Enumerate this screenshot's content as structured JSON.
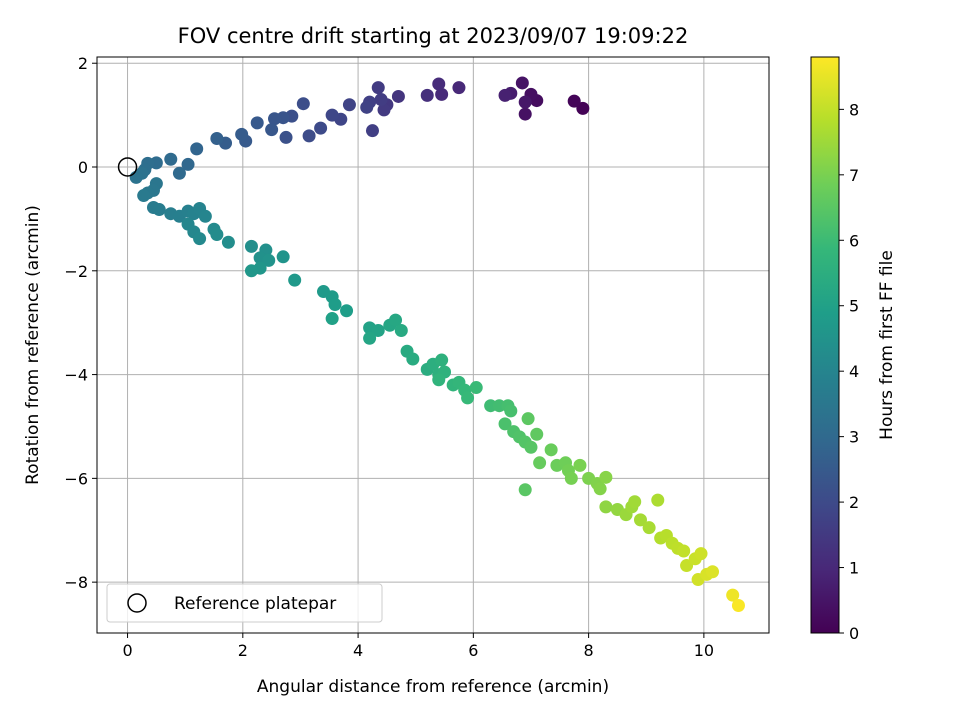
{
  "chart_data": {
    "type": "scatter",
    "title": "FOV centre drift starting at 2023/09/07 19:09:22",
    "xlabel": "Angular distance from reference (arcmin)",
    "ylabel": "Rotation from reference (arcmin)",
    "xlim": [
      -0.53,
      11.13
    ],
    "ylim": [
      -8.98,
      2.12
    ],
    "x_ticks": [
      "0",
      "2",
      "4",
      "6",
      "8",
      "10"
    ],
    "y_ticks": [
      "2",
      "0",
      "−2",
      "−4",
      "−6",
      "−8"
    ],
    "grid": true,
    "legend": {
      "placement": "lower-left",
      "entries": [
        "Reference platepar"
      ]
    },
    "reference_point": {
      "x": 0,
      "y": 0,
      "label": "Reference platepar"
    },
    "colorbar": {
      "label": "Hours from first FF file",
      "colormap": "viridis",
      "range": [
        0,
        8.8
      ],
      "ticks": [
        "0",
        "1",
        "2",
        "3",
        "4",
        "5",
        "6",
        "7",
        "8"
      ]
    },
    "colormap_stops": [
      "#440154",
      "#482878",
      "#3e4989",
      "#31688e",
      "#26828e",
      "#1f9e89",
      "#35b779",
      "#6ece58",
      "#b5de2b",
      "#fde725"
    ],
    "points": [
      [
        7.9,
        1.13,
        0.05
      ],
      [
        7.75,
        1.27,
        0.1
      ],
      [
        7.1,
        1.28,
        0.3
      ],
      [
        7.0,
        1.4,
        0.35
      ],
      [
        6.9,
        1.02,
        0.4
      ],
      [
        6.85,
        1.62,
        0.45
      ],
      [
        6.9,
        1.25,
        0.55
      ],
      [
        6.65,
        1.42,
        0.7
      ],
      [
        6.55,
        1.38,
        0.8
      ],
      [
        5.75,
        1.53,
        1.0
      ],
      [
        5.45,
        1.4,
        1.05
      ],
      [
        5.4,
        1.6,
        1.1
      ],
      [
        5.2,
        1.38,
        1.2
      ],
      [
        4.7,
        1.36,
        1.35
      ],
      [
        4.5,
        1.2,
        1.45
      ],
      [
        4.45,
        1.1,
        1.5
      ],
      [
        4.35,
        1.53,
        1.55
      ],
      [
        4.4,
        1.3,
        1.6
      ],
      [
        4.25,
        0.7,
        1.65
      ],
      [
        4.2,
        1.25,
        1.7
      ],
      [
        4.15,
        1.15,
        1.75
      ],
      [
        3.85,
        1.2,
        1.8
      ],
      [
        3.7,
        0.92,
        1.85
      ],
      [
        3.55,
        1.0,
        1.9
      ],
      [
        3.35,
        0.75,
        2.0
      ],
      [
        3.15,
        0.6,
        2.05
      ],
      [
        3.05,
        1.22,
        2.1
      ],
      [
        2.85,
        0.98,
        2.15
      ],
      [
        2.75,
        0.57,
        2.2
      ],
      [
        2.7,
        0.95,
        2.3
      ],
      [
        2.55,
        0.93,
        2.35
      ],
      [
        2.5,
        0.72,
        2.4
      ],
      [
        2.25,
        0.85,
        2.45
      ],
      [
        2.05,
        0.5,
        2.5
      ],
      [
        1.98,
        0.63,
        2.55
      ],
      [
        1.7,
        0.46,
        2.6
      ],
      [
        1.55,
        0.55,
        2.7
      ],
      [
        1.2,
        0.35,
        2.85
      ],
      [
        1.05,
        0.05,
        2.95
      ],
      [
        0.9,
        -0.12,
        3.0
      ],
      [
        0.75,
        0.15,
        3.05
      ],
      [
        0.5,
        0.08,
        3.1
      ],
      [
        0.35,
        0.07,
        3.15
      ],
      [
        0.3,
        -0.05,
        3.2
      ],
      [
        0.25,
        -0.12,
        3.3
      ],
      [
        0.15,
        -0.2,
        3.35
      ],
      [
        0.5,
        -0.32,
        3.45
      ],
      [
        0.45,
        -0.45,
        3.5
      ],
      [
        0.35,
        -0.5,
        3.55
      ],
      [
        0.28,
        -0.55,
        3.6
      ],
      [
        0.45,
        -0.78,
        3.65
      ],
      [
        0.55,
        -0.82,
        3.7
      ],
      [
        0.75,
        -0.9,
        3.75
      ],
      [
        0.9,
        -0.95,
        3.8
      ],
      [
        1.05,
        -0.85,
        3.85
      ],
      [
        1.15,
        -0.9,
        3.9
      ],
      [
        1.25,
        -0.8,
        3.95
      ],
      [
        1.35,
        -0.95,
        4.0
      ],
      [
        1.05,
        -1.1,
        4.05
      ],
      [
        1.15,
        -1.25,
        4.1
      ],
      [
        1.25,
        -1.38,
        4.15
      ],
      [
        1.5,
        -1.2,
        4.2
      ],
      [
        1.55,
        -1.3,
        4.25
      ],
      [
        1.75,
        -1.45,
        4.3
      ],
      [
        2.15,
        -1.53,
        4.35
      ],
      [
        2.4,
        -1.6,
        4.4
      ],
      [
        2.3,
        -1.75,
        4.45
      ],
      [
        2.45,
        -1.8,
        4.5
      ],
      [
        2.7,
        -1.73,
        4.55
      ],
      [
        2.3,
        -1.95,
        4.6
      ],
      [
        2.15,
        -2.0,
        4.65
      ],
      [
        2.9,
        -2.18,
        4.7
      ],
      [
        3.4,
        -2.4,
        4.75
      ],
      [
        3.55,
        -2.5,
        4.8
      ],
      [
        3.6,
        -2.65,
        4.85
      ],
      [
        3.8,
        -2.77,
        4.9
      ],
      [
        3.55,
        -2.92,
        5.0
      ],
      [
        4.2,
        -3.1,
        5.05
      ],
      [
        4.35,
        -3.15,
        5.1
      ],
      [
        4.2,
        -3.3,
        5.15
      ],
      [
        4.55,
        -3.05,
        5.2
      ],
      [
        4.65,
        -2.95,
        5.25
      ],
      [
        4.75,
        -3.15,
        5.3
      ],
      [
        4.85,
        -3.55,
        5.35
      ],
      [
        4.95,
        -3.7,
        5.4
      ],
      [
        5.2,
        -3.9,
        5.45
      ],
      [
        5.3,
        -3.8,
        5.5
      ],
      [
        5.4,
        -4.0,
        5.55
      ],
      [
        5.45,
        -3.72,
        5.6
      ],
      [
        5.5,
        -3.95,
        5.65
      ],
      [
        5.4,
        -4.1,
        5.7
      ],
      [
        5.65,
        -4.2,
        5.75
      ],
      [
        5.75,
        -4.15,
        5.8
      ],
      [
        5.85,
        -4.3,
        5.85
      ],
      [
        5.9,
        -4.45,
        5.9
      ],
      [
        6.05,
        -4.25,
        5.95
      ],
      [
        6.3,
        -4.6,
        6.05
      ],
      [
        6.45,
        -4.6,
        6.1
      ],
      [
        6.6,
        -4.6,
        6.15
      ],
      [
        6.65,
        -4.7,
        6.2
      ],
      [
        6.55,
        -4.95,
        6.25
      ],
      [
        6.7,
        -5.1,
        6.3
      ],
      [
        6.8,
        -5.2,
        6.35
      ],
      [
        6.9,
        -5.3,
        6.4
      ],
      [
        7.0,
        -5.4,
        6.45
      ],
      [
        6.9,
        -6.22,
        6.5
      ],
      [
        6.95,
        -4.85,
        6.55
      ],
      [
        7.1,
        -5.15,
        6.6
      ],
      [
        7.15,
        -5.7,
        6.7
      ],
      [
        7.35,
        -5.45,
        6.75
      ],
      [
        7.45,
        -5.75,
        6.8
      ],
      [
        7.6,
        -5.7,
        6.85
      ],
      [
        7.65,
        -5.85,
        6.9
      ],
      [
        7.7,
        -6.0,
        6.95
      ],
      [
        7.85,
        -5.75,
        7.0
      ],
      [
        8.0,
        -6.0,
        7.05
      ],
      [
        8.15,
        -6.1,
        7.1
      ],
      [
        8.2,
        -6.2,
        7.15
      ],
      [
        8.3,
        -5.98,
        7.2
      ],
      [
        8.3,
        -6.55,
        7.3
      ],
      [
        8.5,
        -6.6,
        7.35
      ],
      [
        8.65,
        -6.7,
        7.45
      ],
      [
        8.75,
        -6.55,
        7.5
      ],
      [
        8.8,
        -6.45,
        7.55
      ],
      [
        8.9,
        -6.8,
        7.6
      ],
      [
        9.05,
        -6.95,
        7.65
      ],
      [
        9.2,
        -6.42,
        7.7
      ],
      [
        9.25,
        -7.15,
        7.8
      ],
      [
        9.35,
        -7.1,
        7.85
      ],
      [
        9.45,
        -7.25,
        7.9
      ],
      [
        9.55,
        -7.35,
        7.95
      ],
      [
        9.65,
        -7.4,
        8.0
      ],
      [
        9.7,
        -7.68,
        8.05
      ],
      [
        9.85,
        -7.55,
        8.1
      ],
      [
        9.95,
        -7.45,
        8.15
      ],
      [
        9.9,
        -7.95,
        8.2
      ],
      [
        10.05,
        -7.85,
        8.3
      ],
      [
        10.15,
        -7.8,
        8.35
      ],
      [
        10.5,
        -8.25,
        8.6
      ],
      [
        10.6,
        -8.45,
        8.75
      ]
    ]
  }
}
